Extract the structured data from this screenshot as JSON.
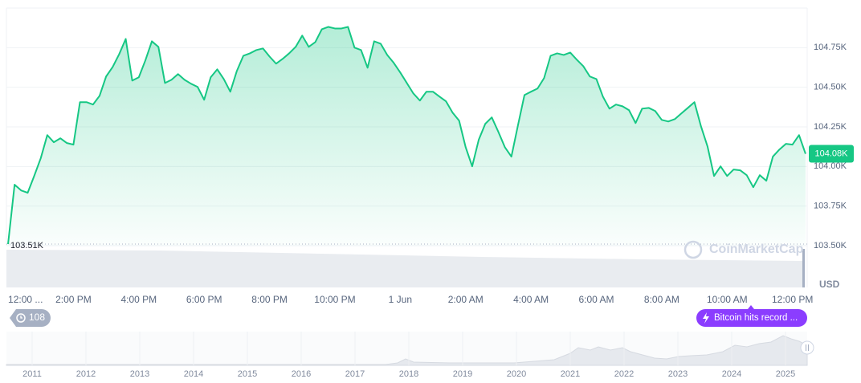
{
  "chart_data": {
    "type": "line",
    "color": "#16c784",
    "x": [
      0,
      0.2,
      0.4,
      0.6,
      0.8,
      1,
      1.2,
      1.4,
      1.6,
      1.8,
      2,
      2.2,
      2.4,
      2.6,
      2.8,
      3,
      3.2,
      3.4,
      3.6,
      3.8,
      4,
      4.2,
      4.4,
      4.6,
      4.8,
      5,
      5.2,
      5.4,
      5.6,
      5.8,
      6,
      6.2,
      6.4,
      6.6,
      6.8,
      7,
      7.2,
      7.4,
      7.6,
      7.8,
      8,
      8.2,
      8.4,
      8.6,
      8.8,
      9,
      9.2,
      9.4,
      9.6,
      9.8,
      10,
      10.2,
      10.4,
      10.6,
      10.8,
      11,
      11.2,
      11.4,
      11.6,
      11.8,
      12,
      12.2,
      12.4,
      12.6,
      12.8,
      13,
      13.2,
      13.4,
      13.6,
      13.8,
      14,
      14.2,
      14.4,
      14.6,
      14.8,
      15,
      15.2,
      15.4,
      15.6,
      15.8,
      16,
      16.2,
      16.4,
      16.6,
      16.8,
      17,
      17.2,
      17.4,
      17.6,
      17.8,
      18,
      18.2,
      18.4,
      18.6,
      18.8,
      19,
      19.2,
      19.4,
      19.6,
      19.8,
      20,
      20.2,
      20.4,
      20.6,
      20.8,
      21,
      21.2,
      21.4,
      21.6,
      21.8,
      22,
      22.2,
      22.4,
      22.6,
      22.8,
      23,
      23.2,
      23.4,
      23.6,
      23.8,
      24,
      24.2,
      24.4
    ],
    "values": [
      103510,
      103885,
      103849,
      103834,
      103940,
      104052,
      104198,
      104153,
      104178,
      104148,
      104138,
      104406,
      104406,
      104391,
      104446,
      104568,
      104628,
      104709,
      104805,
      104542,
      104563,
      104669,
      104790,
      104755,
      104527,
      104547,
      104583,
      104547,
      104522,
      104502,
      104421,
      104563,
      104613,
      104552,
      104472,
      104603,
      104699,
      104714,
      104735,
      104745,
      104694,
      104649,
      104679,
      104714,
      104755,
      104826,
      104755,
      104785,
      104866,
      104881,
      104871,
      104871,
      104881,
      104750,
      104735,
      104623,
      104790,
      104775,
      104704,
      104654,
      104593,
      104527,
      104461,
      104416,
      104472,
      104472,
      104441,
      104411,
      104340,
      104289,
      104122,
      104001,
      104168,
      104269,
      104310,
      104219,
      104122,
      104062,
      104259,
      104451,
      104472,
      104492,
      104558,
      104699,
      104714,
      104704,
      104719,
      104674,
      104633,
      104568,
      104552,
      104441,
      104365,
      104391,
      104380,
      104355,
      104274,
      104365,
      104370,
      104350,
      104294,
      104284,
      104299,
      104335,
      104370,
      104406,
      104254,
      104127,
      103940,
      104001,
      103940,
      103981,
      103976,
      103945,
      103869,
      103945,
      103910,
      104062,
      104107,
      104143,
      104138,
      104198,
      104080
    ],
    "xlim": [
      -0.05,
      24.45
    ],
    "ylim": [
      103500,
      105000
    ],
    "xticks": [
      {
        "value": 0,
        "label": "12:00 ..."
      },
      {
        "value": 2,
        "label": "2:00 PM"
      },
      {
        "value": 4,
        "label": "4:00 PM"
      },
      {
        "value": 6,
        "label": "6:00 PM"
      },
      {
        "value": 8,
        "label": "8:00 PM"
      },
      {
        "value": 10,
        "label": "10:00 PM"
      },
      {
        "value": 12,
        "label": "1 Jun"
      },
      {
        "value": 14,
        "label": "2:00 AM"
      },
      {
        "value": 16,
        "label": "4:00 AM"
      },
      {
        "value": 18,
        "label": "6:00 AM"
      },
      {
        "value": 20,
        "label": "8:00 AM"
      },
      {
        "value": 22,
        "label": "10:00 AM"
      },
      {
        "value": 24,
        "label": "12:00 PM"
      }
    ],
    "yticks": [
      {
        "value": 103500,
        "label": "103.50K"
      },
      {
        "value": 103750,
        "label": "103.75K"
      },
      {
        "value": 104000,
        "label": "104.00K"
      },
      {
        "value": 104250,
        "label": "104.25K"
      },
      {
        "value": 104500,
        "label": "104.50K"
      },
      {
        "value": 104750,
        "label": "104.75K"
      }
    ],
    "grid": true,
    "y_axis_label": "USD",
    "last_price": {
      "value": 104080,
      "label": "104.08K"
    },
    "low_price": {
      "value": 103510,
      "label": "103.51K"
    }
  },
  "watermark": "CoinMarketCap",
  "badge": "108",
  "event": "Bitcoin hits record ...",
  "navigator": {
    "years": [
      "2011",
      "2012",
      "2013",
      "2014",
      "2015",
      "2016",
      "2017",
      "2018",
      "2019",
      "2020",
      "2021",
      "2022",
      "2023",
      "2024",
      "2025"
    ]
  }
}
